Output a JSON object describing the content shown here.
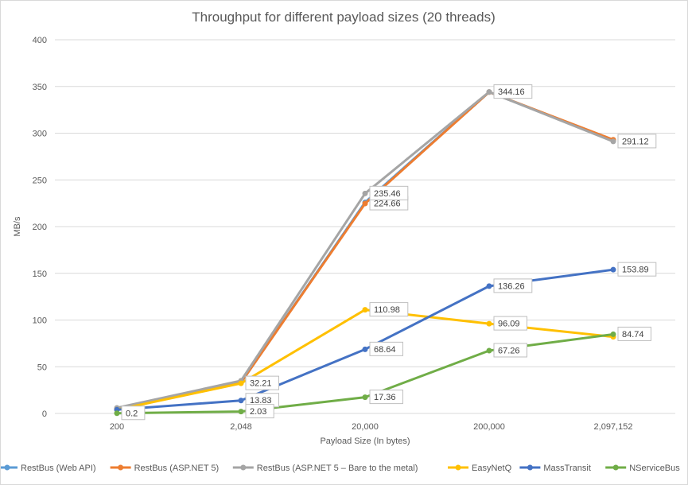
{
  "chart_data": {
    "type": "line",
    "title": "Throughput for different payload sizes (20 threads)",
    "xlabel": "Payload Size (In bytes)",
    "ylabel": "MB/s",
    "ylim": [
      0,
      400
    ],
    "yticks": [
      "0",
      "50",
      "100",
      "150",
      "200",
      "250",
      "300",
      "350",
      "400"
    ],
    "categories": [
      "200",
      "2,048",
      "20,000",
      "200,000",
      "2,097,152"
    ],
    "grid": true,
    "legend_position": "bottom",
    "series": [
      {
        "name": "RestBus (Web API)",
        "color": "#5B9BD5",
        "values": [
          4,
          33,
          226,
          344,
          292
        ],
        "labels": [
          "",
          "",
          "",
          "",
          ""
        ]
      },
      {
        "name": "RestBus (ASP.NET 5)",
        "color": "#ED7D31",
        "values": [
          5,
          33,
          224.66,
          344,
          293
        ],
        "labels": [
          "",
          "",
          "224.66",
          "",
          ""
        ]
      },
      {
        "name": "RestBus (ASP.NET 5 – Bare to the metal)",
        "color": "#A5A5A5",
        "values": [
          6,
          35,
          235.46,
          344.16,
          291.12
        ],
        "labels": [
          "",
          "",
          "235.46",
          "344.16",
          "291.12"
        ]
      },
      {
        "name": "EasyNetQ",
        "color": "#FFC000",
        "values": [
          4,
          32.21,
          110.98,
          96.09,
          82
        ],
        "labels": [
          "",
          "32.21",
          "110.98",
          "96.09",
          ""
        ]
      },
      {
        "name": "MassTransit",
        "color": "#4472C4",
        "values": [
          4,
          13.83,
          68.64,
          136.26,
          153.89
        ],
        "labels": [
          "",
          "13.83",
          "68.64",
          "136.26",
          "153.89"
        ]
      },
      {
        "name": "NServiceBus",
        "color": "#70AD47",
        "values": [
          0.2,
          2.03,
          17.36,
          67.26,
          84.74
        ],
        "labels": [
          "0.2",
          "2.03",
          "17.36",
          "67.26",
          "84.74"
        ]
      }
    ]
  }
}
